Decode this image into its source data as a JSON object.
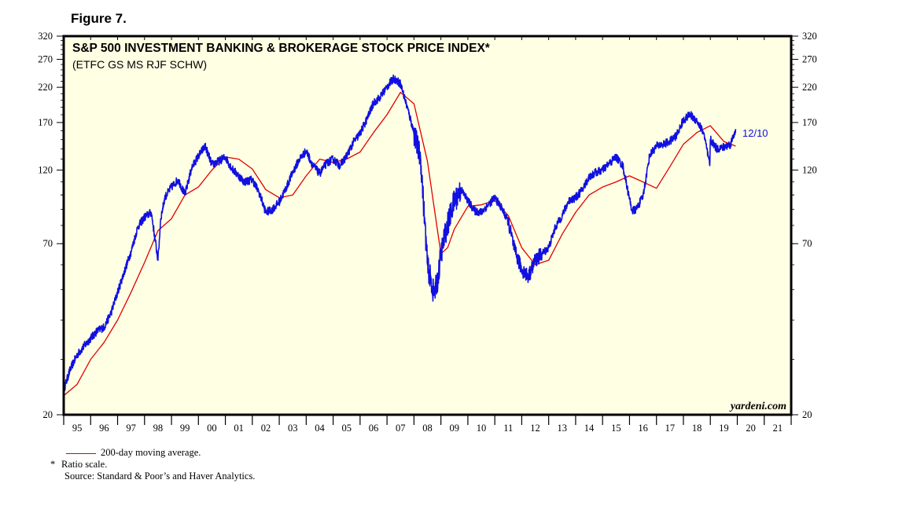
{
  "figure_label": "Figure 7.",
  "chart_data": {
    "type": "line",
    "title": "S&P 500 INVESTMENT BANKING & BROKERAGE STOCK PRICE INDEX*",
    "subtitle": "(ETFC GS MS RJF SCHW)",
    "y_scale": "log",
    "ylim": [
      20,
      320
    ],
    "y_ticks": [
      20,
      70,
      120,
      170,
      220,
      270,
      320
    ],
    "x_range": [
      1995,
      2022
    ],
    "x_tick_labels": [
      "95",
      "96",
      "97",
      "98",
      "99",
      "00",
      "01",
      "02",
      "03",
      "04",
      "05",
      "06",
      "07",
      "08",
      "09",
      "10",
      "11",
      "12",
      "13",
      "14",
      "15",
      "16",
      "17",
      "18",
      "19",
      "20",
      "21"
    ],
    "series": [
      {
        "name": "S&P 500 Investment Banking & Brokerage Index",
        "color": "#1010e0",
        "x": [
          1995.0,
          1995.25,
          1995.5,
          1995.75,
          1996.0,
          1996.25,
          1996.5,
          1996.75,
          1997.0,
          1997.25,
          1997.5,
          1997.75,
          1998.0,
          1998.25,
          1998.5,
          1998.6,
          1998.75,
          1999.0,
          1999.25,
          1999.5,
          1999.75,
          2000.0,
          2000.25,
          2000.5,
          2000.75,
          2001.0,
          2001.25,
          2001.5,
          2001.7,
          2002.0,
          2002.25,
          2002.5,
          2002.75,
          2003.0,
          2003.25,
          2003.5,
          2003.75,
          2004.0,
          2004.25,
          2004.5,
          2004.75,
          2005.0,
          2005.25,
          2005.5,
          2005.75,
          2006.0,
          2006.25,
          2006.5,
          2006.75,
          2007.0,
          2007.25,
          2007.5,
          2007.75,
          2008.0,
          2008.25,
          2008.5,
          2008.75,
          2008.9,
          2009.0,
          2009.2,
          2009.5,
          2009.75,
          2010.0,
          2010.25,
          2010.5,
          2010.75,
          2011.0,
          2011.25,
          2011.5,
          2011.75,
          2012.0,
          2012.25,
          2012.5,
          2012.75,
          2013.0,
          2013.25,
          2013.5,
          2013.75,
          2014.0,
          2014.25,
          2014.5,
          2014.75,
          2015.0,
          2015.25,
          2015.5,
          2015.75,
          2016.0,
          2016.1,
          2016.25,
          2016.5,
          2016.75,
          2017.0,
          2017.25,
          2017.5,
          2017.75,
          2018.0,
          2018.25,
          2018.5,
          2018.75,
          2018.98,
          2019.0,
          2019.25,
          2019.5,
          2019.75,
          2019.94
        ],
        "values": [
          24,
          28,
          31,
          33,
          35,
          37,
          38,
          42,
          49,
          57,
          66,
          79,
          85,
          88,
          62,
          84,
          98,
          106,
          112,
          100,
          122,
          133,
          143,
          125,
          128,
          132,
          121,
          115,
          110,
          112,
          102,
          88,
          90,
          95,
          105,
          118,
          130,
          138,
          124,
          117,
          126,
          130,
          124,
          133,
          147,
          157,
          174,
          196,
          205,
          221,
          235,
          226,
          190,
          158,
          130,
          60,
          48,
          55,
          65,
          78,
          96,
          104,
          96,
          89,
          88,
          93,
          98,
          91,
          82,
          66,
          58,
          55,
          62,
          65,
          68,
          79,
          86,
          96,
          98,
          104,
          114,
          118,
          120,
          126,
          132,
          124,
          97,
          89,
          90,
          99,
          134,
          143,
          145,
          148,
          155,
          173,
          180,
          172,
          158,
          124,
          150,
          140,
          142,
          145,
          162
        ]
      },
      {
        "name": "200-day moving average.",
        "color": "#e00000",
        "x": [
          1995.0,
          1995.5,
          1996.0,
          1996.5,
          1997.0,
          1997.5,
          1998.0,
          1998.5,
          1999.0,
          1999.5,
          2000.0,
          2000.5,
          2001.0,
          2001.5,
          2002.0,
          2002.5,
          2003.0,
          2003.5,
          2004.0,
          2004.5,
          2005.0,
          2005.5,
          2006.0,
          2006.5,
          2007.0,
          2007.5,
          2008.0,
          2008.5,
          2009.0,
          2009.25,
          2009.5,
          2010.0,
          2010.5,
          2011.0,
          2011.5,
          2012.0,
          2012.5,
          2013.0,
          2013.5,
          2014.0,
          2014.5,
          2015.0,
          2015.5,
          2016.0,
          2016.5,
          2017.0,
          2017.5,
          2018.0,
          2018.5,
          2019.0,
          2019.5,
          2019.94
        ],
        "values": [
          23,
          25,
          30,
          34,
          40,
          49,
          61,
          77,
          84,
          100,
          106,
          120,
          132,
          130,
          121,
          104,
          98,
          100,
          115,
          130,
          127,
          130,
          137,
          158,
          180,
          212,
          195,
          128,
          65,
          68,
          78,
          92,
          93,
          96,
          86,
          68,
          60,
          62,
          75,
          88,
          100,
          106,
          110,
          115,
          110,
          105,
          123,
          145,
          158,
          166,
          148,
          143
        ]
      }
    ],
    "annotations": [
      "12/10",
      "yardeni.com"
    ]
  },
  "footnotes": {
    "legend_label": "200-day moving average.",
    "star_mark": "*",
    "note": "Ratio scale.",
    "source": "Source: Standard & Poor’s and Haver Analytics."
  }
}
